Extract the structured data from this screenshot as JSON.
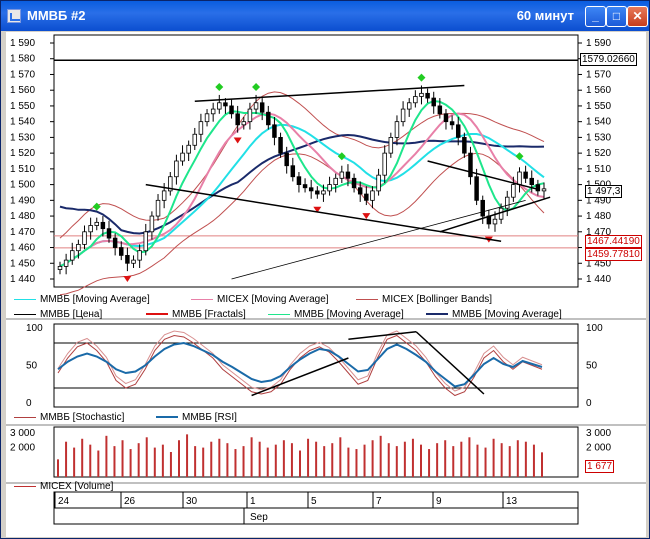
{
  "window": {
    "title": "ММВБ #2",
    "period": "60 минут",
    "buttons": {
      "minimize": "_",
      "maximize": "□",
      "close": "✕"
    }
  },
  "colors": {
    "cyan": "#21e0e6",
    "pink": "#e880a8",
    "bollinger": "#c05050",
    "price": "#000000",
    "fractal_up": "#22cc22",
    "fractal_down": "#dd1111",
    "ma_green": "#1ee68c",
    "ma_navy": "#1a2a6a",
    "stoch": "#b04040",
    "rsi": "#1a6aa8",
    "volume": "#c03030"
  },
  "price_axis": {
    "left_ticks": [
      "1 590",
      "1 580",
      "1 570",
      "1 560",
      "1 550",
      "1 540",
      "1 530",
      "1 520",
      "1 510",
      "1 500",
      "1 490",
      "1 480",
      "1 470",
      "1 460",
      "1 450",
      "1 440"
    ],
    "right_ticks": [
      "1 590",
      "1 580",
      "1 570",
      "1 560",
      "1 550",
      "1 540",
      "1 530",
      "1 520",
      "1 510",
      "1 500",
      "1 490",
      "1 480",
      "1 470",
      "1 460",
      "1 450",
      "1 440"
    ],
    "hline_label": "1579.02660",
    "current_label": "1 497,3",
    "bb_label1": "1467.44190",
    "bb_label2": "1459.77810"
  },
  "legend_price": [
    {
      "text": "ММВБ [Moving Average]",
      "color_key": "cyan"
    },
    {
      "text": "MICEX [Moving Average]",
      "color_key": "pink"
    },
    {
      "text": "MICEX [Bollinger Bands]",
      "color_key": "bollinger"
    },
    {
      "text": "ММВБ [Цена]",
      "color_key": "price"
    },
    {
      "text": "ММВБ [Fractals]",
      "color_key": "fractal_down"
    },
    {
      "text": "ММВБ [Moving Average]",
      "color_key": "ma_green"
    },
    {
      "text": "ММВБ [Moving Average]",
      "color_key": "ma_navy"
    }
  ],
  "osc_axis": {
    "left_ticks": [
      "100",
      "50",
      "0"
    ],
    "right_ticks": [
      "100",
      "50",
      "0"
    ]
  },
  "legend_osc": [
    {
      "text": "ММВБ [Stochastic]",
      "color_key": "stoch"
    },
    {
      "text": "ММВБ [RSI]",
      "color_key": "rsi"
    }
  ],
  "vol_axis": {
    "left_ticks": [
      "3 000",
      "2 000"
    ],
    "right_ticks": [
      "3 000",
      "2 000"
    ],
    "current_label": "1 677"
  },
  "legend_vol": [
    {
      "text": "MICEX [Volume]",
      "color_key": "volume"
    }
  ],
  "date_axis": {
    "days": [
      "24",
      "26",
      "30",
      "1",
      "5",
      "7",
      "9",
      "13"
    ],
    "month": "Sep"
  },
  "chart_data": {
    "type": "candlestick",
    "title": "",
    "ylim": [
      1440,
      1590
    ],
    "reference_lines": [
      1579.0266,
      1467.4419,
      1459.7781
    ],
    "last_price": 1497.3,
    "close_series": [
      1448,
      1452,
      1458,
      1462,
      1470,
      1474,
      1476,
      1472,
      1466,
      1460,
      1455,
      1450,
      1452,
      1458,
      1470,
      1480,
      1490,
      1496,
      1505,
      1515,
      1520,
      1525,
      1532,
      1540,
      1545,
      1548,
      1552,
      1550,
      1545,
      1538,
      1540,
      1548,
      1552,
      1546,
      1538,
      1530,
      1520,
      1512,
      1505,
      1500,
      1498,
      1496,
      1494,
      1496,
      1500,
      1504,
      1508,
      1504,
      1498,
      1494,
      1490,
      1496,
      1506,
      1520,
      1530,
      1540,
      1548,
      1552,
      1556,
      1558,
      1555,
      1550,
      1545,
      1540,
      1538,
      1530,
      1520,
      1505,
      1490,
      1480,
      1475,
      1478,
      1485,
      1492,
      1500,
      1508,
      1504,
      1500,
      1496,
      1497.3
    ],
    "stochastic": [
      40,
      60,
      75,
      80,
      70,
      55,
      30,
      20,
      25,
      45,
      70,
      85,
      90,
      88,
      80,
      70,
      60,
      45,
      35,
      25,
      15,
      12,
      15,
      25,
      45,
      60,
      70,
      75,
      68,
      55,
      40,
      25,
      30,
      60,
      85,
      90,
      80,
      70,
      55,
      35,
      20,
      10,
      15,
      35,
      60,
      70,
      55,
      45,
      55,
      50,
      45
    ],
    "rsi": [
      45,
      55,
      62,
      66,
      62,
      55,
      45,
      40,
      42,
      50,
      62,
      72,
      78,
      80,
      76,
      70,
      64,
      55,
      48,
      40,
      32,
      28,
      30,
      36,
      48,
      58,
      66,
      72,
      70,
      62,
      52,
      42,
      44,
      58,
      72,
      78,
      72,
      64,
      55,
      42,
      32,
      22,
      25,
      38,
      52,
      60,
      52,
      48,
      56,
      52,
      48
    ],
    "volume": [
      1200,
      2400,
      2000,
      2600,
      2200,
      1800,
      2800,
      2100,
      2500,
      1900,
      2300,
      2700,
      2000,
      2200,
      1700,
      2500,
      2900,
      2100,
      2000,
      2400,
      2600,
      2300,
      1900,
      2100,
      2700,
      2400,
      2000,
      2200,
      2500,
      2300,
      1800,
      2600,
      2400,
      2100,
      2300,
      2700,
      2000,
      1900,
      2200,
      2500,
      2800,
      2300,
      2100,
      2400,
      2600,
      2200,
      1900,
      2300,
      2500,
      2100,
      2400,
      2700,
      2200,
      2000,
      2600,
      2300,
      2100,
      2500,
      2400,
      2200,
      1677
    ]
  }
}
